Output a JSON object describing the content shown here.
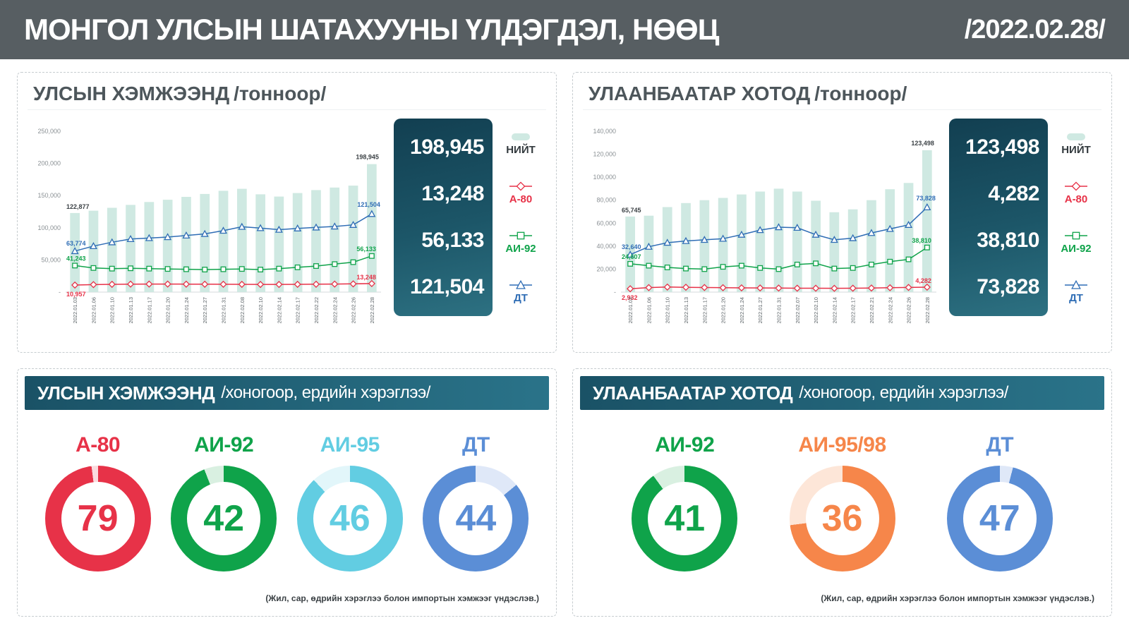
{
  "header": {
    "title": "МОНГОЛ УЛСЫН ШАТАХУУНЫ ҮЛДЭГДЭЛ, НӨӨЦ",
    "date": "/2022.02.28/"
  },
  "footnote": "(Жил, сар, өдрийн хэрэглээ болон импортын хэмжээг үндэслэв.)",
  "stock_panels": [
    {
      "title": "УЛСЫН ХЭМЖЭЭНД",
      "unit": "/тонноор/"
    },
    {
      "title": "УЛААНБААТАР ХОТОД",
      "unit": "/тонноор/"
    }
  ],
  "days_panels": [
    {
      "title": "УЛСЫН ХЭМЖЭЭНД",
      "unit": "/хоногоор, ердийн хэрэглээ/"
    },
    {
      "title": "УЛААНБААТАР ХОТОД",
      "unit": "/хоногоор, ердийн хэрэглээ/"
    }
  ],
  "chart_data": [
    {
      "type": "bar+line",
      "title": "УЛСЫН ХЭМЖЭЭНД /тонноор/",
      "categories": [
        "2022.01.03",
        "2022.01.06",
        "2022.01.10",
        "2022.01.13",
        "2022.01.17",
        "2022.01.20",
        "2022.01.24",
        "2022.01.27",
        "2022.01.31",
        "2022.02.08",
        "2022.02.10",
        "2022.02.14",
        "2022.02.17",
        "2022.02.22",
        "2022.02.24",
        "2022.02.26",
        "2022.02.28"
      ],
      "ylim": [
        0,
        250000
      ],
      "ytick_step": 50000,
      "legend_position": "right",
      "grid": false,
      "series": [
        {
          "name": "НИЙТ",
          "type": "bar",
          "color": "#cfe9e2",
          "ann_color": "#3c4246",
          "label_color": "#333a3e",
          "values": [
            122877,
            126500,
            131000,
            135500,
            140000,
            143500,
            148000,
            152500,
            157500,
            160500,
            152000,
            148500,
            154000,
            158500,
            162500,
            165500,
            198945
          ]
        },
        {
          "name": "А-80",
          "type": "line",
          "marker": "diamond",
          "color": "#e73248",
          "values": [
            10957,
            11600,
            12100,
            12400,
            12500,
            12450,
            12350,
            12250,
            12150,
            12050,
            11950,
            11900,
            12050,
            12250,
            12500,
            12800,
            13248
          ]
        },
        {
          "name": "АИ-92",
          "type": "line",
          "marker": "square",
          "color": "#0fa34a",
          "values": [
            41243,
            37500,
            36500,
            37000,
            36500,
            36000,
            35500,
            35000,
            35500,
            36000,
            35000,
            36500,
            38500,
            40500,
            43500,
            46500,
            56133
          ]
        },
        {
          "name": "ДТ",
          "type": "line",
          "marker": "triangle",
          "color": "#2f6db5",
          "values": [
            63774,
            71500,
            77500,
            82500,
            84000,
            85500,
            88000,
            90500,
            95500,
            101500,
            99500,
            97000,
            99000,
            100500,
            102000,
            104500,
            121504
          ]
        }
      ]
    },
    {
      "type": "bar+line",
      "title": "УЛААНБААТАР ХОТОД /тонноор/",
      "categories": [
        "2022.01.03",
        "2022.01.06",
        "2022.01.10",
        "2022.01.13",
        "2022.01.17",
        "2022.01.20",
        "2022.01.24",
        "2022.01.27",
        "2022.01.31",
        "2022.02.07",
        "2022.02.10",
        "2022.02.14",
        "2022.02.17",
        "2022.02.21",
        "2022.02.24",
        "2022.02.26",
        "2022.02.28"
      ],
      "ylim": [
        0,
        140000
      ],
      "ytick_step": 20000,
      "legend_position": "right",
      "grid": false,
      "series": [
        {
          "name": "НИЙТ",
          "type": "bar",
          "color": "#cfe9e2",
          "ann_color": "#3c4246",
          "label_color": "#333a3e",
          "values": [
            65745,
            66500,
            74000,
            77500,
            80000,
            82000,
            85000,
            87500,
            90000,
            87500,
            79500,
            69500,
            72000,
            80000,
            89500,
            95000,
            123498
          ]
        },
        {
          "name": "А-80",
          "type": "line",
          "marker": "diamond",
          "color": "#e73248",
          "values": [
            2932,
            3900,
            4400,
            4200,
            4000,
            3850,
            3700,
            3600,
            3500,
            3400,
            3350,
            3300,
            3400,
            3550,
            3800,
            4050,
            4282
          ]
        },
        {
          "name": "АИ-92",
          "type": "line",
          "marker": "square",
          "color": "#0fa34a",
          "values": [
            24607,
            23000,
            21500,
            20500,
            20000,
            22000,
            23000,
            21000,
            20000,
            24000,
            25000,
            20500,
            21000,
            24000,
            26500,
            28500,
            38810
          ]
        },
        {
          "name": "ДТ",
          "type": "line",
          "marker": "triangle",
          "color": "#2f6db5",
          "values": [
            32640,
            39500,
            43000,
            44500,
            45500,
            46500,
            50000,
            54000,
            56500,
            56000,
            50000,
            45500,
            47000,
            51500,
            55000,
            58500,
            73828
          ]
        }
      ]
    },
    {
      "type": "donut-gauges",
      "title": "УЛСЫН ХЭМЖЭЭНД /хоногоор, ердийн хэрэглээ/",
      "gauges": [
        {
          "label": "А-80",
          "value": 79,
          "color": "#e73248",
          "light": "#fadbde",
          "fill_pct": 98,
          "gap_at_start": false
        },
        {
          "label": "АИ-92",
          "value": 42,
          "color": "#0fa34a",
          "light": "#d9f0e1",
          "fill_pct": 94,
          "gap_at_start": false
        },
        {
          "label": "АИ-95",
          "value": 46,
          "color": "#62cde2",
          "light": "#e2f6fa",
          "fill_pct": 88,
          "gap_at_start": false
        },
        {
          "label": "ДТ",
          "value": 44,
          "color": "#5b8ed6",
          "light": "#dfe8f8",
          "fill_pct": 86,
          "gap_at_start": true
        }
      ]
    },
    {
      "type": "donut-gauges",
      "title": "УЛААНБААТАР ХОТОД /хоногоор, ердийн хэрэглээ/",
      "gauges": [
        {
          "label": "АИ-92",
          "value": 41,
          "color": "#0fa34a",
          "light": "#d9f0e1",
          "fill_pct": 90,
          "gap_at_start": false
        },
        {
          "label": "АИ-95/98",
          "value": 36,
          "color": "#f6864a",
          "light": "#fde6d8",
          "fill_pct": 73,
          "gap_at_start": false
        },
        {
          "label": "ДТ",
          "value": 47,
          "color": "#5b8ed6",
          "light": "#dfe8f8",
          "fill_pct": 96,
          "gap_at_start": true
        }
      ]
    }
  ]
}
